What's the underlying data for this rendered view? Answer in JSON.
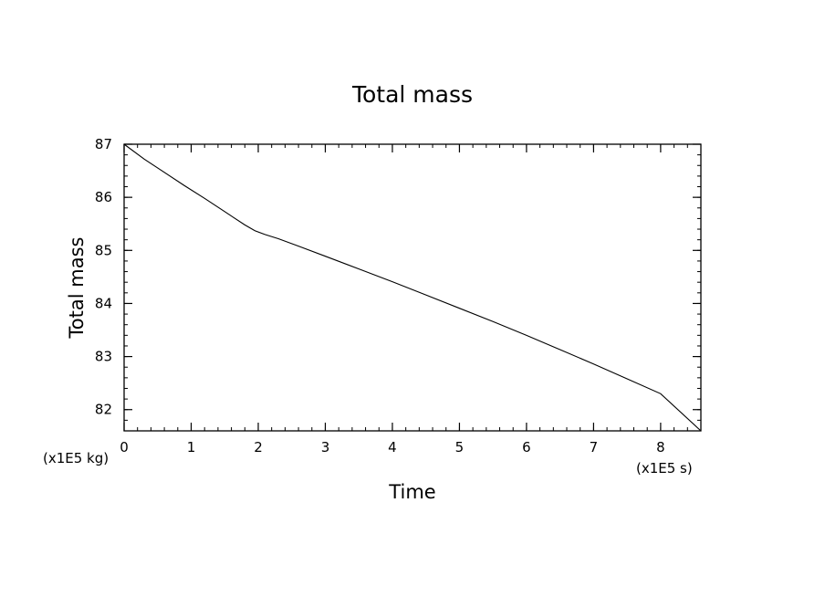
{
  "chart_data": {
    "type": "line",
    "title": "Total mass",
    "xlabel": "Time",
    "ylabel": "Total mass",
    "x_unit_label": "(x1E5 s)",
    "y_unit_label": "(x1E5 kg)",
    "xlim": [
      0,
      8.6
    ],
    "ylim": [
      81.6,
      87.0
    ],
    "x_ticks": [
      0,
      1,
      2,
      3,
      4,
      5,
      6,
      7,
      8
    ],
    "y_ticks": [
      82,
      83,
      84,
      85,
      86,
      87
    ],
    "grid": false,
    "series": [
      {
        "x": [
          0,
          0.3,
          0.6,
          0.9,
          1.2,
          1.5,
          1.8,
          1.95,
          2.1,
          2.3,
          2.6,
          3.0,
          3.5,
          4.0,
          4.5,
          5.0,
          5.5,
          6.0,
          6.5,
          7.0,
          7.5,
          8.0,
          8.6
        ],
        "y": [
          87.0,
          86.72,
          86.47,
          86.22,
          85.98,
          85.73,
          85.48,
          85.37,
          85.3,
          85.22,
          85.08,
          84.89,
          84.65,
          84.41,
          84.16,
          83.91,
          83.66,
          83.4,
          83.13,
          82.86,
          82.58,
          82.3,
          81.6
        ]
      }
    ]
  }
}
